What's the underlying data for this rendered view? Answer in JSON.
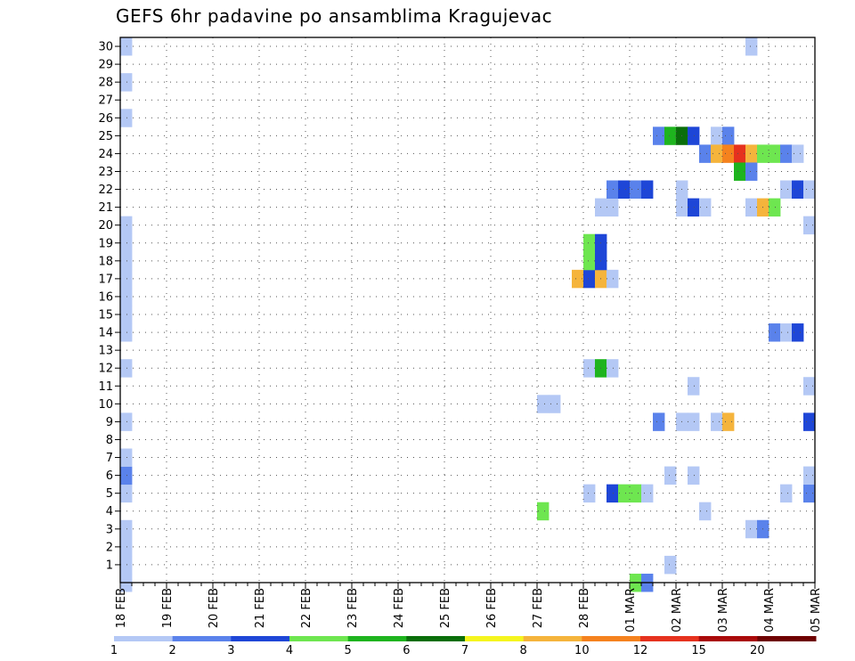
{
  "chart_data": {
    "type": "heatmap",
    "title": "GEFS 6hr padavine po ansamblima Kragujevac",
    "x_labels": [
      "18 FEB",
      "19 FEB",
      "20 FEB",
      "21 FEB",
      "22 FEB",
      "23 FEB",
      "24 FEB",
      "25 FEB",
      "26 FEB",
      "27 FEB",
      "28 FEB",
      "01 MAR",
      "02 MAR",
      "03 MAR",
      "04 MAR",
      "05 MAR"
    ],
    "x_step_hours": 6,
    "y_labels": [
      "1",
      "2",
      "3",
      "4",
      "5",
      "6",
      "7",
      "8",
      "9",
      "10",
      "11",
      "12",
      "13",
      "14",
      "15",
      "16",
      "17",
      "18",
      "19",
      "20",
      "21",
      "22",
      "23",
      "24",
      "25",
      "26",
      "27",
      "28",
      "29",
      "30"
    ],
    "grid": true,
    "legend_position": "bottom",
    "legend": {
      "labels": [
        "1",
        "2",
        "3",
        "4",
        "5",
        "6",
        "7",
        "8",
        "10",
        "12",
        "15",
        "20"
      ],
      "colors": [
        "#b4c8f5",
        "#5a82eb",
        "#1e46d7",
        "#6ee650",
        "#1eb41e",
        "#0a6e0a",
        "#f5f51e",
        "#f5b43c",
        "#f5821e",
        "#e6321e",
        "#aa0a0a",
        "#6e0000"
      ]
    },
    "cells": [
      {
        "step": 1,
        "m": 0,
        "v": 1.5
      },
      {
        "step": 1,
        "m": 1,
        "v": 1.5
      },
      {
        "step": 1,
        "m": 2,
        "v": 1.5
      },
      {
        "step": 1,
        "m": 3,
        "v": 1.5
      },
      {
        "step": 1,
        "m": 5,
        "v": 1.5
      },
      {
        "step": 1,
        "m": 6,
        "v": 2.5
      },
      {
        "step": 1,
        "m": 7,
        "v": 1.5
      },
      {
        "step": 1,
        "m": 9,
        "v": 1.5
      },
      {
        "step": 1,
        "m": 12,
        "v": 1.5
      },
      {
        "step": 1,
        "m": 14,
        "v": 1.5
      },
      {
        "step": 1,
        "m": 15,
        "v": 1.5
      },
      {
        "step": 1,
        "m": 16,
        "v": 1.5
      },
      {
        "step": 1,
        "m": 17,
        "v": 1.5
      },
      {
        "step": 1,
        "m": 18,
        "v": 1.5
      },
      {
        "step": 1,
        "m": 19,
        "v": 1.5
      },
      {
        "step": 1,
        "m": 20,
        "v": 1.5
      },
      {
        "step": 1,
        "m": 26,
        "v": 1.5
      },
      {
        "step": 1,
        "m": 28,
        "v": 1.5
      },
      {
        "step": 1,
        "m": 30,
        "v": 1.5
      },
      {
        "step": 37,
        "m": 10,
        "v": 1.5
      },
      {
        "step": 38,
        "m": 10,
        "v": 1.5
      },
      {
        "step": 37,
        "m": 4,
        "v": 4.5
      },
      {
        "step": 40,
        "m": 17,
        "v": 9
      },
      {
        "step": 41,
        "m": 17,
        "v": 3.5
      },
      {
        "step": 42,
        "m": 17,
        "v": 8.5
      },
      {
        "step": 43,
        "m": 17,
        "v": 1.5
      },
      {
        "step": 41,
        "m": 18,
        "v": 4.5
      },
      {
        "step": 42,
        "m": 18,
        "v": 3.5
      },
      {
        "step": 41,
        "m": 19,
        "v": 4.5
      },
      {
        "step": 42,
        "m": 19,
        "v": 3.5
      },
      {
        "step": 41,
        "m": 5,
        "v": 1.5
      },
      {
        "step": 41,
        "m": 12,
        "v": 1.5
      },
      {
        "step": 42,
        "m": 12,
        "v": 5.5
      },
      {
        "step": 43,
        "m": 12,
        "v": 1.5
      },
      {
        "step": 42,
        "m": 21,
        "v": 1.5
      },
      {
        "step": 43,
        "m": 21,
        "v": 1.5
      },
      {
        "step": 43,
        "m": 22,
        "v": 2.5
      },
      {
        "step": 44,
        "m": 22,
        "v": 3.5
      },
      {
        "step": 45,
        "m": 22,
        "v": 2.5
      },
      {
        "step": 46,
        "m": 22,
        "v": 3.5
      },
      {
        "step": 43,
        "m": 5,
        "v": 3.5
      },
      {
        "step": 44,
        "m": 5,
        "v": 4.5
      },
      {
        "step": 45,
        "m": 5,
        "v": 4.5
      },
      {
        "step": 46,
        "m": 5,
        "v": 1.5
      },
      {
        "step": 45,
        "m": 0,
        "v": 4.5
      },
      {
        "step": 46,
        "m": 0,
        "v": 2.5
      },
      {
        "step": 47,
        "m": 25,
        "v": 2.5
      },
      {
        "step": 48,
        "m": 25,
        "v": 5.5
      },
      {
        "step": 49,
        "m": 25,
        "v": 6.5
      },
      {
        "step": 50,
        "m": 25,
        "v": 3.5
      },
      {
        "step": 47,
        "m": 9,
        "v": 2.5
      },
      {
        "step": 48,
        "m": 6,
        "v": 1.5
      },
      {
        "step": 48,
        "m": 1,
        "v": 1.5
      },
      {
        "step": 49,
        "m": 22,
        "v": 1.5
      },
      {
        "step": 49,
        "m": 21,
        "v": 1.5
      },
      {
        "step": 50,
        "m": 21,
        "v": 3.5
      },
      {
        "step": 51,
        "m": 21,
        "v": 1.5
      },
      {
        "step": 49,
        "m": 9,
        "v": 1.5
      },
      {
        "step": 50,
        "m": 9,
        "v": 1.5
      },
      {
        "step": 50,
        "m": 11,
        "v": 1.5
      },
      {
        "step": 50,
        "m": 6,
        "v": 1.5
      },
      {
        "step": 51,
        "m": 24,
        "v": 2.5
      },
      {
        "step": 51,
        "m": 4,
        "v": 1.5
      },
      {
        "step": 52,
        "m": 25,
        "v": 1.5
      },
      {
        "step": 53,
        "m": 25,
        "v": 2.5
      },
      {
        "step": 52,
        "m": 24,
        "v": 8.5
      },
      {
        "step": 53,
        "m": 24,
        "v": 11
      },
      {
        "step": 54,
        "m": 24,
        "v": 13
      },
      {
        "step": 55,
        "m": 24,
        "v": 9
      },
      {
        "step": 56,
        "m": 24,
        "v": 4.5
      },
      {
        "step": 57,
        "m": 24,
        "v": 4.5
      },
      {
        "step": 58,
        "m": 24,
        "v": 2.5
      },
      {
        "step": 59,
        "m": 24,
        "v": 1.5
      },
      {
        "step": 52,
        "m": 9,
        "v": 1.5
      },
      {
        "step": 53,
        "m": 9,
        "v": 8.5
      },
      {
        "step": 54,
        "m": 23,
        "v": 5.5
      },
      {
        "step": 55,
        "m": 23,
        "v": 2.5
      },
      {
        "step": 55,
        "m": 30,
        "v": 1.5
      },
      {
        "step": 55,
        "m": 21,
        "v": 1.5
      },
      {
        "step": 56,
        "m": 21,
        "v": 8.5
      },
      {
        "step": 57,
        "m": 21,
        "v": 4.5
      },
      {
        "step": 55,
        "m": 3,
        "v": 1.5
      },
      {
        "step": 56,
        "m": 3,
        "v": 2.5
      },
      {
        "step": 58,
        "m": 22,
        "v": 1.5
      },
      {
        "step": 59,
        "m": 22,
        "v": 3.5
      },
      {
        "step": 60,
        "m": 22,
        "v": 1.5
      },
      {
        "step": 60,
        "m": 20,
        "v": 1.5
      },
      {
        "step": 57,
        "m": 14,
        "v": 2.5
      },
      {
        "step": 58,
        "m": 14,
        "v": 1.5
      },
      {
        "step": 59,
        "m": 14,
        "v": 3.5
      },
      {
        "step": 58,
        "m": 5,
        "v": 1.5
      },
      {
        "step": 60,
        "m": 5,
        "v": 2.5
      },
      {
        "step": 60,
        "m": 11,
        "v": 1.5
      },
      {
        "step": 60,
        "m": 9,
        "v": 3.5
      },
      {
        "step": 60,
        "m": 6,
        "v": 1.5
      }
    ]
  }
}
